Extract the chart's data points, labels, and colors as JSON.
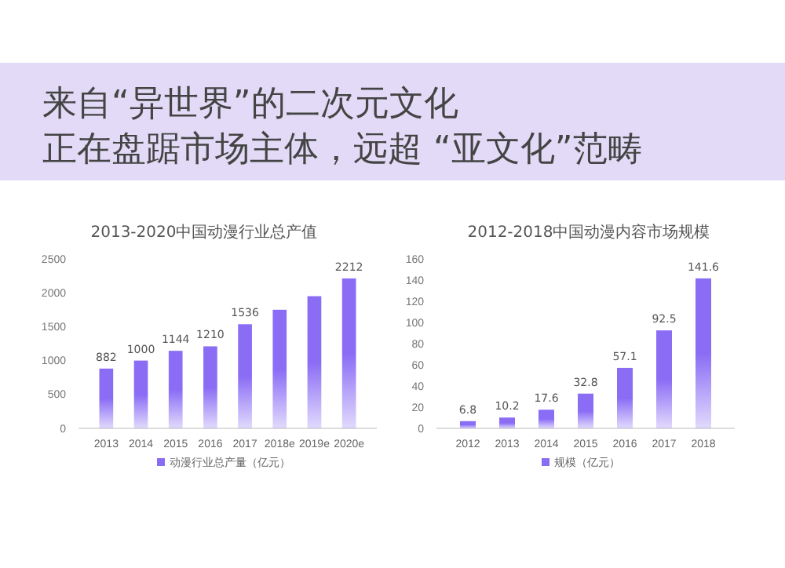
{
  "chart_data": [
    {
      "type": "other",
      "title": "来自“异世界”的二次元文化",
      "subtitle": "正在盘踞市场主体，远超 “亚文化”范畴"
    },
    {
      "type": "bar",
      "title": "2013-2020中国动漫行业总产值",
      "categories": [
        "2013",
        "2014",
        "2015",
        "2016",
        "2017",
        "2018e",
        "2019e",
        "2020e"
      ],
      "series": [
        {
          "name": "动漫行业总产量（亿元）",
          "color": "#8a6cf5",
          "values": [
            882,
            1000,
            1144,
            1210,
            1536,
            1750,
            1950,
            2212
          ],
          "value_labels": [
            "882",
            "1000",
            "1144",
            "1210",
            "1536",
            null,
            null,
            "2212"
          ]
        }
      ],
      "ylim": [
        0,
        2500
      ],
      "yticks": [
        0,
        500,
        1000,
        1500,
        2000,
        2500
      ],
      "legend": "bottom"
    },
    {
      "type": "bar",
      "title": "2012-2018中国动漫内容市场规模",
      "categories": [
        "2012",
        "2013",
        "2014",
        "2015",
        "2016",
        "2017",
        "2018"
      ],
      "series": [
        {
          "name": "规模（亿元）",
          "color": "#8a6cf5",
          "values": [
            6.8,
            10.2,
            17.6,
            32.8,
            57.1,
            92.5,
            141.6
          ]
        }
      ],
      "ylim": [
        0,
        160
      ],
      "yticks": [
        0,
        20,
        40,
        60,
        80,
        100,
        120,
        140,
        160
      ],
      "data_labels": true,
      "legend": "bottom"
    }
  ]
}
